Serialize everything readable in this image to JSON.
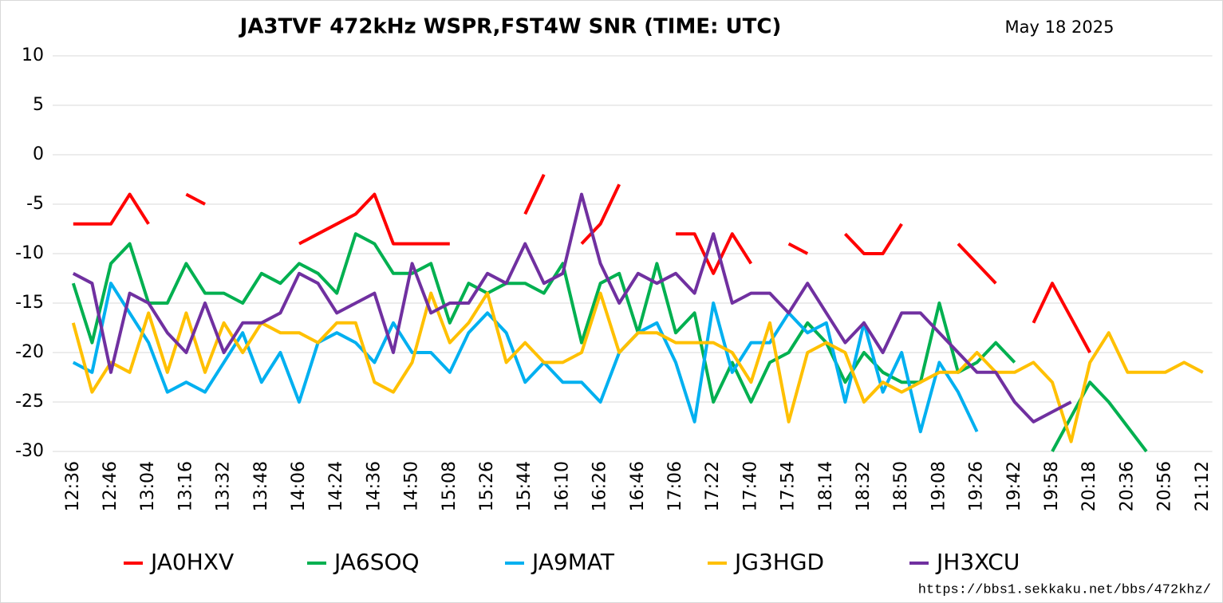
{
  "chart_data": {
    "type": "line",
    "title": "JA3TVF 472kHz WSPR,FST4W SNR (TIME: UTC)",
    "subtitle": "May 18 2025",
    "source": "https://bbs1.sekkaku.net/bbs/472khz/",
    "categories": [
      "12:36",
      null,
      "12:46",
      null,
      "13:04",
      null,
      "13:16",
      null,
      "13:32",
      null,
      "13:48",
      null,
      "14:06",
      null,
      "14:24",
      null,
      "14:36",
      null,
      "14:50",
      null,
      "15:08",
      null,
      "15:26",
      null,
      "15:44",
      null,
      "16:10",
      null,
      "16:26",
      null,
      "16:46",
      null,
      "17:06",
      null,
      "17:22",
      null,
      "17:40",
      null,
      "17:54",
      null,
      "18:14",
      null,
      "18:32",
      null,
      "18:50",
      null,
      "19:08",
      null,
      "19:26",
      null,
      "19:42",
      null,
      "19:58",
      null,
      "20:18",
      null,
      "20:36",
      null,
      "20:56",
      null,
      "21:12"
    ],
    "ylim": [
      -30,
      10
    ],
    "yticks": [
      -30,
      -25,
      -20,
      -15,
      -10,
      -5,
      0,
      5,
      10
    ],
    "grid": true,
    "legend": "bottom",
    "series": [
      {
        "name": "JA0HXV",
        "color": "#ff0000",
        "values": [
          -7,
          -7,
          -7,
          -4,
          -7,
          null,
          -4,
          -5,
          null,
          null,
          null,
          null,
          -9,
          -8,
          -7,
          -6,
          -4,
          -9,
          -9,
          -9,
          -9,
          null,
          null,
          null,
          -6,
          -2,
          null,
          -9,
          -7,
          -3,
          null,
          null,
          -8,
          -8,
          -12,
          -8,
          -11,
          null,
          -9,
          -10,
          null,
          -8,
          -10,
          -10,
          -7,
          null,
          null,
          -9,
          -11,
          -13,
          null,
          -17,
          -13,
          -16.5,
          -20,
          null,
          null,
          null,
          null,
          null,
          null
        ]
      },
      {
        "name": "JA6SOQ",
        "color": "#00b050",
        "values": [
          -13,
          -19,
          -11,
          -9,
          -15,
          -15,
          -11,
          -14,
          -14,
          -15,
          -12,
          -13,
          -11,
          -12,
          -14,
          -8,
          -9,
          -12,
          -12,
          -11,
          -17,
          -13,
          -14,
          -13,
          -13,
          -14,
          -11,
          -19,
          -13,
          -12,
          -18,
          -11,
          -18,
          -16,
          -25,
          -21,
          -25,
          -21,
          -20,
          -17,
          -19,
          -23,
          -20,
          -22,
          -23,
          -23,
          -15,
          -22,
          -21,
          -19,
          -21,
          null,
          -30,
          -26.5,
          -23,
          -25,
          -27.5,
          -30,
          null,
          null,
          null
        ]
      },
      {
        "name": "JA9MAT",
        "color": "#00b0f0",
        "values": [
          -21,
          -22,
          -13,
          -16,
          -19,
          -24,
          -23,
          -24,
          -21,
          -18,
          -23,
          -20,
          -25,
          -19,
          -18,
          -19,
          -21,
          -17,
          -20,
          -20,
          -22,
          -18,
          -16,
          -18,
          -23,
          -21,
          -23,
          -23,
          -25,
          -20,
          -18,
          -17,
          -21,
          -27,
          -15,
          -22,
          -19,
          -19,
          -16,
          -18,
          -17,
          -25,
          -17,
          -24,
          -20,
          -28,
          -21,
          -24,
          -28,
          null,
          null,
          null,
          null,
          null,
          null,
          null,
          null,
          null,
          null,
          null,
          null
        ]
      },
      {
        "name": "JG3HGD",
        "color": "#ffc000",
        "values": [
          -17,
          -24,
          -21,
          -22,
          -16,
          -22,
          -16,
          -22,
          -17,
          -20,
          -17,
          -18,
          -18,
          -19,
          -17,
          -17,
          -23,
          -24,
          -21,
          -14,
          -19,
          -17,
          -14,
          -21,
          -19,
          -21,
          -21,
          -20,
          -14,
          -20,
          -18,
          -18,
          -19,
          -19,
          -19,
          -20,
          -23,
          -17,
          -27,
          -20,
          -19,
          -20,
          -25,
          -23,
          -24,
          -23,
          -22,
          -22,
          -20,
          -22,
          -22,
          -21,
          -23,
          -29,
          -21,
          -18,
          -22,
          -22,
          -22,
          -21,
          -22
        ]
      },
      {
        "name": "JH3XCU",
        "color": "#7030a0",
        "values": [
          -12,
          -13,
          -22,
          -14,
          -15,
          -18,
          -20,
          -15,
          -20,
          -17,
          -17,
          -16,
          -12,
          -13,
          -16,
          -15,
          -14,
          -20,
          -11,
          -16,
          -15,
          -15,
          -12,
          -13,
          -9,
          -13,
          -12,
          -4,
          -11,
          -15,
          -12,
          -13,
          -12,
          -14,
          -8,
          -15,
          -14,
          -14,
          -16,
          -13,
          -16,
          -19,
          -17,
          -20,
          -16,
          -16,
          -18,
          -20,
          -22,
          -22,
          -25,
          -27,
          -26,
          -25,
          null,
          null,
          null,
          null,
          null,
          null,
          null
        ]
      }
    ]
  }
}
